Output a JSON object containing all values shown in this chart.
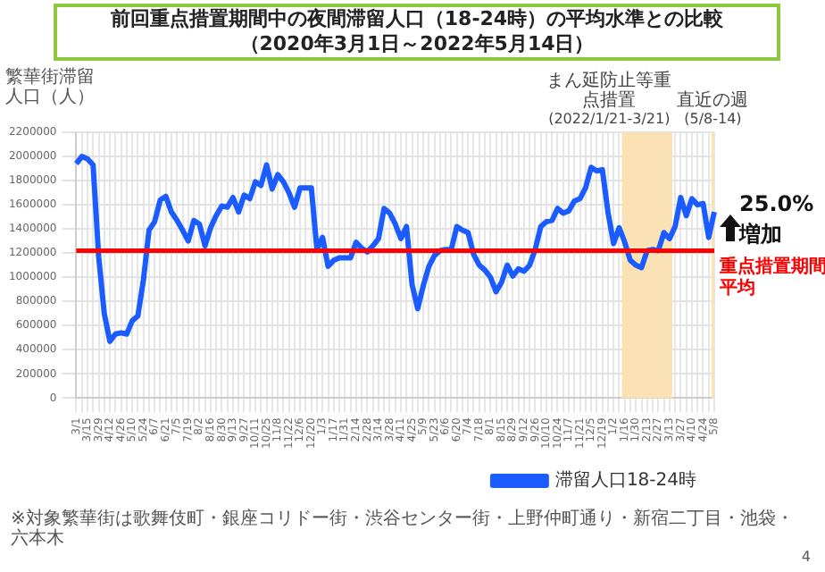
{
  "chart_data": {
    "type": "line",
    "title": "前回重点措置期間中の夜間滞留人口（18-24時）の平均水準との比較",
    "subtitle": "（2020年3月1日～2022年5月14日）",
    "ylabel": "繁華街滞留人口（人）",
    "categories": [
      "3/1",
      null,
      "3/15",
      null,
      "3/29",
      null,
      "4/12",
      null,
      "4/26",
      null,
      "5/10",
      null,
      "5/24",
      null,
      "6/7",
      null,
      "6/21",
      null,
      "7/5",
      null,
      "7/19",
      null,
      "8/2",
      null,
      "8/16",
      null,
      "8/30",
      null,
      "9/13",
      null,
      "9/27",
      null,
      "10/11",
      null,
      "10/25",
      null,
      "11/8",
      null,
      "11/22",
      null,
      "12/6",
      null,
      "12/20",
      null,
      "1/3",
      null,
      "1/17",
      null,
      "1/31",
      null,
      "2/14",
      null,
      "2/28",
      null,
      "3/14",
      null,
      "3/28",
      null,
      "4/11",
      null,
      "4/25",
      null,
      "5/9",
      null,
      "5/23",
      null,
      "6/6",
      null,
      "6/20",
      null,
      "7/4",
      null,
      "7/18",
      null,
      "8/1",
      null,
      "8/15",
      null,
      "8/29",
      null,
      "9/12",
      null,
      "9/26",
      null,
      "10/10",
      null,
      "10/24",
      null,
      "11/7",
      null,
      "11/21",
      null,
      "12/5",
      null,
      "12/19",
      null,
      "1/2",
      null,
      "1/16",
      null,
      "1/30",
      null,
      "2/13",
      null,
      "2/27",
      null,
      "3/13",
      null,
      "3/27",
      null,
      "4/10",
      null,
      "4/24",
      null,
      "5/8"
    ],
    "series": [
      {
        "name": "滞留人口18-24時",
        "color": "#1a5cff",
        "values": [
          1940000,
          2000000,
          1980000,
          1930000,
          1170000,
          700000,
          470000,
          530000,
          540000,
          530000,
          640000,
          680000,
          980000,
          1390000,
          1460000,
          1640000,
          1670000,
          1540000,
          1470000,
          1390000,
          1300000,
          1470000,
          1440000,
          1260000,
          1410000,
          1510000,
          1590000,
          1580000,
          1660000,
          1540000,
          1680000,
          1650000,
          1790000,
          1760000,
          1930000,
          1730000,
          1850000,
          1790000,
          1700000,
          1580000,
          1740000,
          1740000,
          1740000,
          1230000,
          1330000,
          1090000,
          1140000,
          1160000,
          1160000,
          1160000,
          1290000,
          1240000,
          1210000,
          1260000,
          1320000,
          1570000,
          1530000,
          1440000,
          1320000,
          1420000,
          940000,
          740000,
          930000,
          1090000,
          1180000,
          1220000,
          1230000,
          1230000,
          1420000,
          1390000,
          1370000,
          1190000,
          1100000,
          1060000,
          1000000,
          880000,
          960000,
          1100000,
          1010000,
          1070000,
          1050000,
          1100000,
          1230000,
          1420000,
          1460000,
          1470000,
          1570000,
          1530000,
          1550000,
          1630000,
          1650000,
          1740000,
          1910000,
          1880000,
          1890000,
          1540000,
          1280000,
          1410000,
          1290000,
          1140000,
          1100000,
          1080000,
          1220000,
          1230000,
          1220000,
          1370000,
          1320000,
          1420000,
          1660000,
          1510000,
          1650000,
          1600000,
          1610000,
          1330000,
          1540000
        ]
      }
    ],
    "ylim": [
      0,
      2200000
    ],
    "yticks": [
      0,
      200000,
      400000,
      600000,
      800000,
      1000000,
      1200000,
      1400000,
      1600000,
      1800000,
      2000000,
      2200000
    ],
    "grid": true,
    "legend": "bottom right",
    "marker": "none",
    "ref_lines": [
      {
        "axis": "y",
        "value": 1220000,
        "label": "重点措置期間平均",
        "color": "#ff0000"
      }
    ],
    "bands": [
      {
        "axis": "x",
        "from": "1/16",
        "to": "3/13",
        "label": "まん延防止等重点措置(2022/1/21-3/21)",
        "color": "#fbe2b5"
      },
      {
        "axis": "x",
        "from": "5/8",
        "to": "5/8",
        "label": "直近の週(5/8-14)",
        "color": "#fbe2b5"
      }
    ],
    "annotations": [
      "25.0%",
      "増加",
      "※対象繁華街は歌舞伎町・銀座コリドー街・渋谷センター街・上野仲町通り・新宿二丁目・池袋・六本木",
      "4"
    ]
  }
}
